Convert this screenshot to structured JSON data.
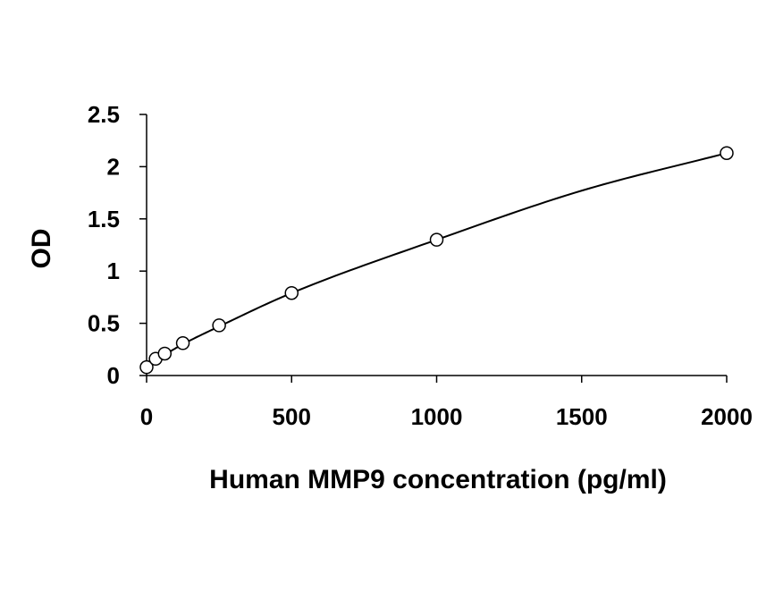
{
  "chart_data": {
    "type": "scatter",
    "title": "",
    "xlabel": "Human MMP9 concentration (pg/ml)",
    "ylabel": "OD",
    "xlim": [
      0,
      2000
    ],
    "ylim": [
      0,
      2.5
    ],
    "x_ticks": [
      "0",
      "500",
      "1000",
      "1500",
      "2000"
    ],
    "y_ticks": [
      "0",
      "0.5",
      "1",
      "1.5",
      "2",
      "2.5"
    ],
    "grid": false,
    "legend": "none",
    "series": [
      {
        "marker": "open-circle",
        "x": [
          0,
          31.25,
          62.5,
          125,
          250,
          500,
          1000,
          2000
        ],
        "y": [
          0.08,
          0.16,
          0.21,
          0.31,
          0.48,
          0.79,
          1.3,
          2.13
        ]
      }
    ],
    "fit_curve": {
      "type": "smooth",
      "x": [
        0,
        62.5,
        125,
        250,
        500,
        1000,
        1500,
        2000
      ],
      "y": [
        0.1,
        0.2,
        0.3,
        0.47,
        0.79,
        1.3,
        1.77,
        2.13
      ]
    }
  }
}
